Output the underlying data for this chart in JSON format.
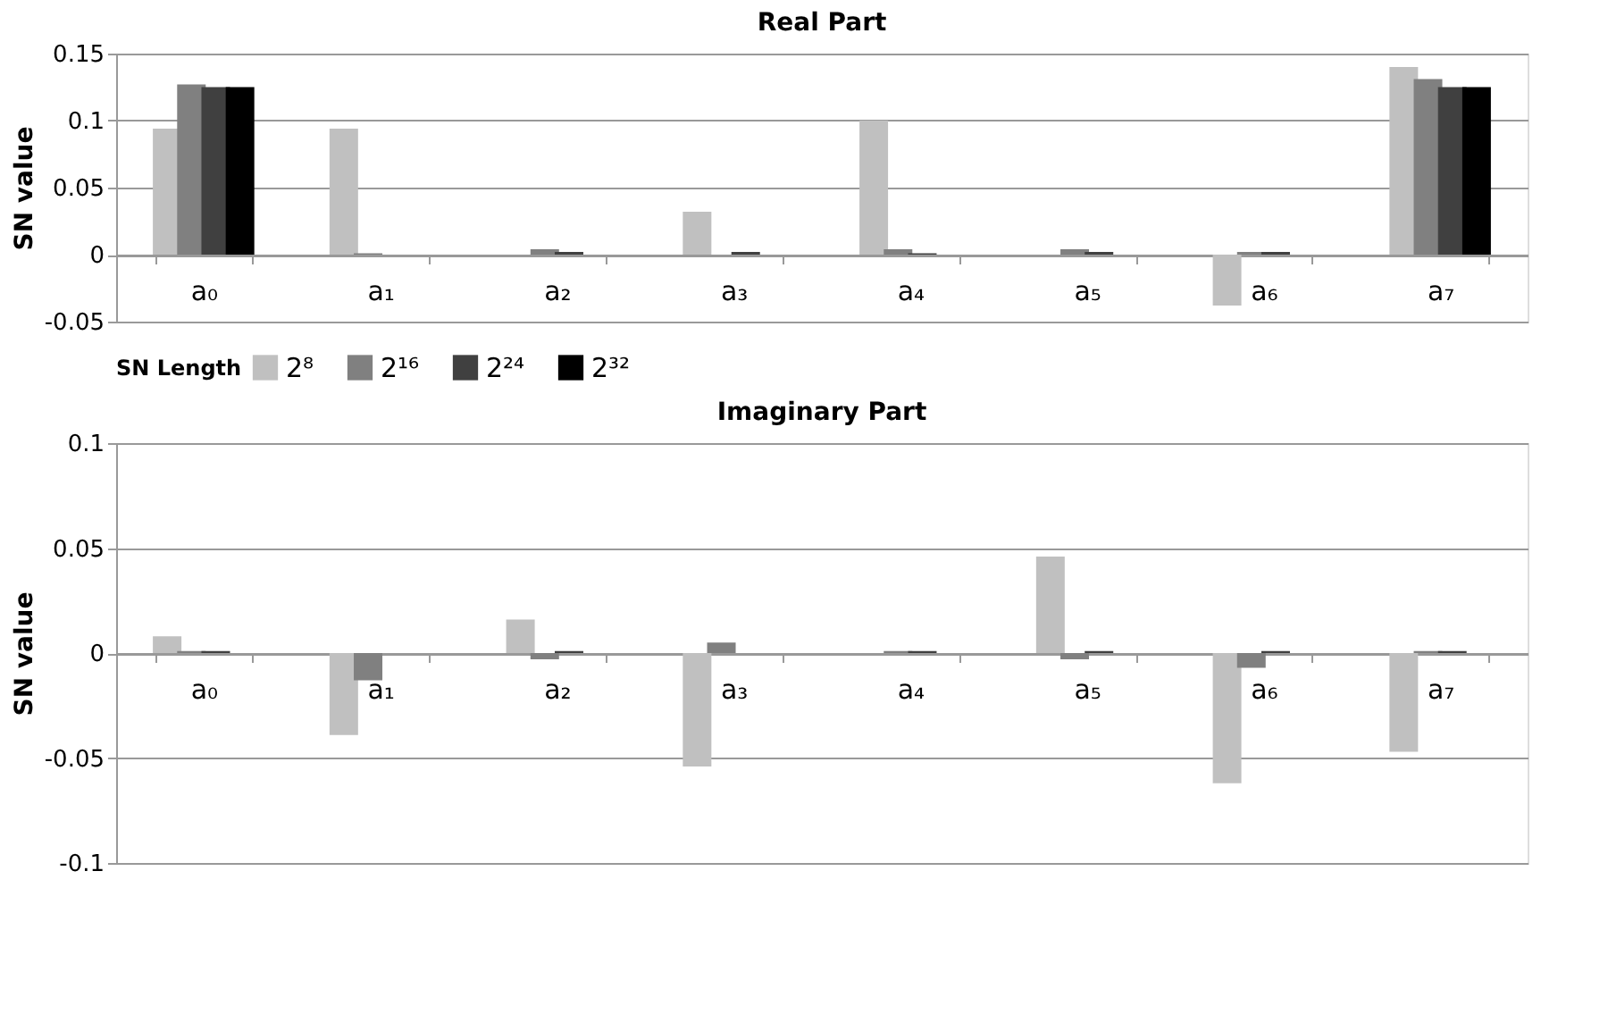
{
  "chart_data": [
    {
      "type": "bar",
      "title": "Real Part",
      "ylabel": "SN value",
      "legend_title": "SN Length",
      "legend": "bottom",
      "grid": "y",
      "categories": [
        "a₀",
        "a₁",
        "a₂",
        "a₃",
        "a₄",
        "a₅",
        "a₆",
        "a₇"
      ],
      "ylim": [
        -0.05,
        0.15
      ],
      "yticks": [
        -0.05,
        0,
        0.05,
        0.1,
        0.15
      ],
      "series": [
        {
          "name": "2⁸",
          "color": "#c0c0c0",
          "values": [
            0.094,
            0.094,
            0,
            0.032,
            0.1,
            0,
            -0.038,
            0.14
          ]
        },
        {
          "name": "2¹⁶",
          "color": "#808080",
          "values": [
            0.127,
            0.001,
            0.004,
            0,
            0.004,
            0.004,
            0.002,
            0.131
          ]
        },
        {
          "name": "2²⁴",
          "color": "#404040",
          "values": [
            0.125,
            0,
            0.002,
            0.002,
            0.001,
            0.002,
            0.002,
            0.125
          ]
        },
        {
          "name": "2³²",
          "color": "#000000",
          "values": [
            0.125,
            0,
            0,
            0,
            0,
            0,
            0,
            0.125
          ]
        }
      ]
    },
    {
      "type": "bar",
      "title": "Imaginary Part",
      "ylabel": "SN value",
      "grid": "y",
      "categories": [
        "a₀",
        "a₁",
        "a₂",
        "a₃",
        "a₄",
        "a₅",
        "a₆",
        "a₇"
      ],
      "ylim": [
        -0.1,
        0.1
      ],
      "yticks": [
        -0.1,
        -0.05,
        0,
        0.05,
        0.1
      ],
      "series": [
        {
          "color": "#c0c0c0",
          "values": [
            0.008,
            -0.039,
            0.016,
            -0.054,
            0,
            0.046,
            -0.062,
            -0.047
          ]
        },
        {
          "color": "#808080",
          "values": [
            0.001,
            -0.013,
            -0.003,
            0.005,
            0.001,
            -0.003,
            -0.007,
            0.001
          ]
        },
        {
          "color": "#404040",
          "values": [
            0.001,
            0,
            0.001,
            0,
            0.001,
            0.001,
            0.001,
            0.001
          ]
        },
        {
          "color": "#000000",
          "values": [
            0,
            0,
            0,
            0,
            0,
            0,
            0,
            0
          ]
        }
      ]
    }
  ]
}
